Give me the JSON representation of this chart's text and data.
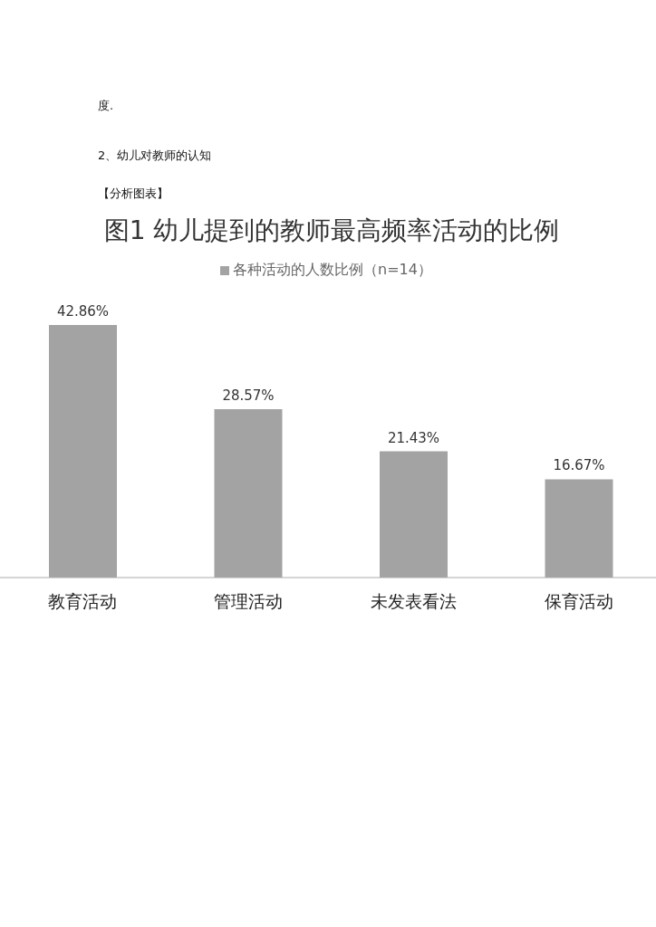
{
  "chart_data": {
    "type": "bar",
    "title": "图1 幼儿提到的教师最高频率活动的比例",
    "annotations": [
      "度.",
      "2、幼儿对教师的认知",
      "【分析图表】"
    ],
    "categories": [
      "教育活动",
      "管理活动",
      "未发表看法",
      "保育活动"
    ],
    "series": [
      {
        "name": "各种活动的人数比例（n=14）",
        "color": "#a3a3a3",
        "values": [
          42.86,
          28.57,
          21.43,
          16.67
        ],
        "value_labels": [
          "42.86%",
          "28.57%",
          "21.43%",
          "16.67%"
        ]
      }
    ],
    "legend": "top"
  }
}
